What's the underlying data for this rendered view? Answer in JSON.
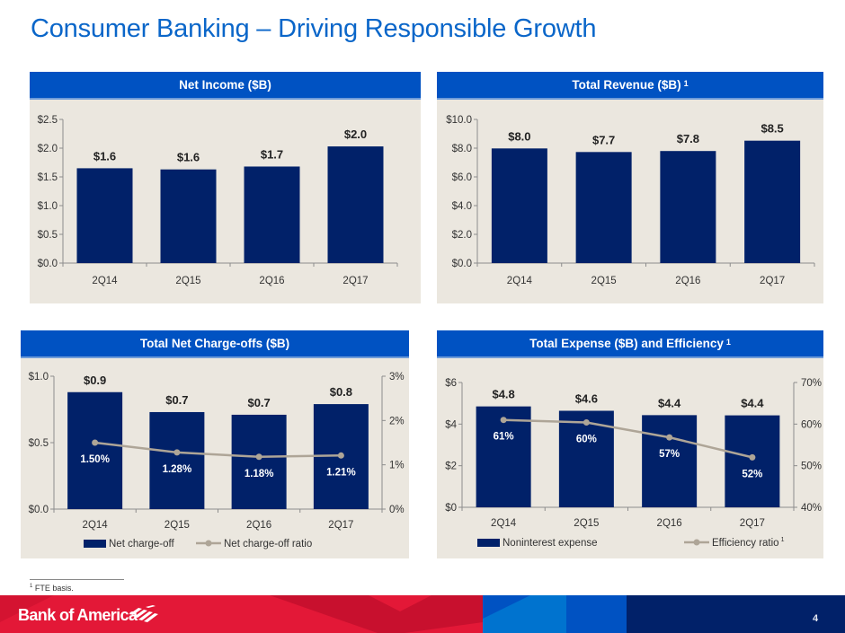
{
  "page": {
    "title": "Consumer Banking – Driving Responsible Growth",
    "footnote_marker": "1",
    "footnote_text": "FTE basis.",
    "brand": "Bank of America",
    "page_number": "4",
    "colors": {
      "title": "#0a66c9",
      "panel_header": "#0052c2",
      "panel_bg": "#ebe7df",
      "bar": "#012169",
      "line": "#aea597",
      "brand_red": "#e31837",
      "brand_navy": "#012169"
    }
  },
  "chart_data": [
    {
      "id": "net_income",
      "type": "bar",
      "title": "Net Income ($B)",
      "title_sup": "",
      "categories": [
        "2Q14",
        "2Q15",
        "2Q16",
        "2Q17"
      ],
      "values": [
        1.65,
        1.63,
        1.68,
        2.03
      ],
      "data_labels": [
        "$1.6",
        "$1.6",
        "$1.7",
        "$2.0"
      ],
      "ylim": [
        0,
        2.5
      ],
      "yticks": [
        0,
        0.5,
        1.0,
        1.5,
        2.0,
        2.5
      ],
      "ytick_labels": [
        "$0.0",
        "$0.5",
        "$1.0",
        "$1.5",
        "$2.0",
        "$2.5"
      ],
      "grid": false,
      "legend": null
    },
    {
      "id": "total_revenue",
      "type": "bar",
      "title": "Total Revenue ($B)",
      "title_sup": "1",
      "categories": [
        "2Q14",
        "2Q15",
        "2Q16",
        "2Q17"
      ],
      "values": [
        7.98,
        7.73,
        7.8,
        8.52
      ],
      "data_labels": [
        "$8.0",
        "$7.7",
        "$7.8",
        "$8.5"
      ],
      "ylim": [
        0,
        10
      ],
      "yticks": [
        0,
        2,
        4,
        6,
        8,
        10
      ],
      "ytick_labels": [
        "$0.0",
        "$2.0",
        "$4.0",
        "$6.0",
        "$8.0",
        "$10.0"
      ],
      "grid": false,
      "legend": null
    },
    {
      "id": "net_charge_offs",
      "type": "bar",
      "title": "Total Net Charge-offs ($B)",
      "title_sup": "",
      "categories": [
        "2Q14",
        "2Q15",
        "2Q16",
        "2Q17"
      ],
      "series": [
        {
          "name": "Net charge-off",
          "type": "bar",
          "axis": "left",
          "values": [
            0.88,
            0.73,
            0.71,
            0.79
          ],
          "data_labels": [
            "$0.9",
            "$0.7",
            "$0.7",
            "$0.8"
          ]
        },
        {
          "name": "Net charge-off ratio",
          "type": "line",
          "axis": "right",
          "values": [
            1.5,
            1.28,
            1.18,
            1.21
          ],
          "data_labels": [
            "1.50%",
            "1.28%",
            "1.18%",
            "1.21%"
          ]
        }
      ],
      "ylim": [
        0,
        1.0
      ],
      "yticks": [
        0,
        0.5,
        1.0
      ],
      "ytick_labels": [
        "$0.0",
        "$0.5",
        "$1.0"
      ],
      "y2lim": [
        0,
        3
      ],
      "y2ticks": [
        0,
        1,
        2,
        3
      ],
      "y2tick_labels": [
        "0%",
        "1%",
        "2%",
        "3%"
      ],
      "grid": false,
      "legend": "bottom"
    },
    {
      "id": "expense_efficiency",
      "type": "bar",
      "title": "Total Expense ($B) and Efficiency",
      "title_sup": "1",
      "categories": [
        "2Q14",
        "2Q15",
        "2Q16",
        "2Q17"
      ],
      "series": [
        {
          "name": "Noninterest expense",
          "type": "bar",
          "axis": "left",
          "values": [
            4.85,
            4.64,
            4.43,
            4.42
          ],
          "data_labels": [
            "$4.8",
            "$4.6",
            "$4.4",
            "$4.4"
          ]
        },
        {
          "name": "Efficiency ratio",
          "name_sup": "1",
          "type": "line",
          "axis": "right",
          "values": [
            61,
            60.4,
            56.8,
            52
          ],
          "data_labels": [
            "61%",
            "60%",
            "57%",
            "52%"
          ]
        }
      ],
      "ylim": [
        0,
        6
      ],
      "yticks": [
        0,
        2,
        4,
        6
      ],
      "ytick_labels": [
        "$0",
        "$2",
        "$4",
        "$6"
      ],
      "y2lim": [
        40,
        70
      ],
      "y2ticks": [
        40,
        50,
        60,
        70
      ],
      "y2tick_labels": [
        "40%",
        "50%",
        "60%",
        "70%"
      ],
      "grid": false,
      "legend": "bottom"
    }
  ]
}
